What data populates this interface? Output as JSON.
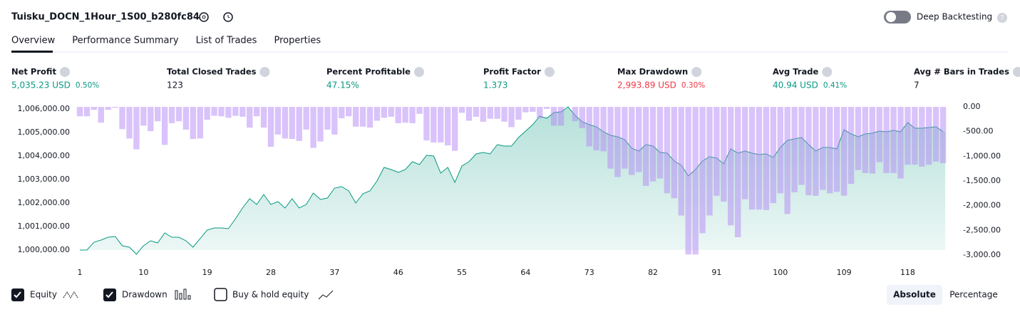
{
  "header": {
    "title": "Tuisku_DOCN_1Hour_1S00_b280fc84",
    "deep_backtesting": "Deep Backtesting"
  },
  "tabs": [
    "Overview",
    "Performance Summary",
    "List of Trades",
    "Properties"
  ],
  "stats": [
    {
      "label": "Net Profit",
      "value": "5,035.23 USD",
      "percent": "0.50%",
      "color": "#089981"
    },
    {
      "label": "Total Closed Trades",
      "value": "123",
      "color": "#131722"
    },
    {
      "label": "Percent Profitable",
      "value": "47.15%",
      "color": "#089981"
    },
    {
      "label": "Profit Factor",
      "value": "1.373",
      "color": "#089981"
    },
    {
      "label": "Max Drawdown",
      "value": "2,993.89 USD",
      "percent": "0.30%",
      "color": "#f23645"
    },
    {
      "label": "Avg Trade",
      "value": "40.94 USD",
      "percent": "0.41%",
      "color": "#089981"
    },
    {
      "label": "Avg # Bars in Trades",
      "value": "7",
      "color": "#131722"
    }
  ],
  "chart_data": {
    "type": "line",
    "x": [
      1,
      2,
      3,
      4,
      5,
      6,
      7,
      8,
      9,
      10,
      11,
      12,
      13,
      14,
      15,
      16,
      17,
      18,
      19,
      20,
      21,
      22,
      23,
      24,
      25,
      26,
      27,
      28,
      29,
      30,
      31,
      32,
      33,
      34,
      35,
      36,
      37,
      38,
      39,
      40,
      41,
      42,
      43,
      44,
      45,
      46,
      47,
      48,
      49,
      50,
      51,
      52,
      53,
      54,
      55,
      56,
      57,
      58,
      59,
      60,
      61,
      62,
      63,
      64,
      65,
      66,
      67,
      68,
      69,
      70,
      71,
      72,
      73,
      74,
      75,
      76,
      77,
      78,
      79,
      80,
      81,
      82,
      83,
      84,
      85,
      86,
      87,
      88,
      89,
      90,
      91,
      92,
      93,
      94,
      95,
      96,
      97,
      98,
      99,
      100,
      101,
      102,
      103,
      104,
      105,
      106,
      107,
      108,
      109,
      110,
      111,
      112,
      113,
      114,
      115,
      116,
      117,
      118,
      119,
      120,
      121,
      122,
      123
    ],
    "series": [
      {
        "name": "Equity",
        "color": "#089981",
        "values": [
          1000000,
          1000000,
          1000333,
          1000424,
          1000545,
          1000576,
          1000182,
          1000121,
          999818,
          1000182,
          1000394,
          1000303,
          1000727,
          1000545,
          1000545,
          1000394,
          1000121,
          1000485,
          1000848,
          1000939,
          1000939,
          1000909,
          1001333,
          1001788,
          1002182,
          1001939,
          1002364,
          1001939,
          1002061,
          1001788,
          1002182,
          1001788,
          1001939,
          1002424,
          1002152,
          1002212,
          1002636,
          1002697,
          1002515,
          1002000,
          1002394,
          1002515,
          1002939,
          1003515,
          1003424,
          1003303,
          1003424,
          1003758,
          1003636,
          1004030,
          1004000,
          1003273,
          1003515,
          1002879,
          1003576,
          1003758,
          1004091,
          1004152,
          1004091,
          1004485,
          1004424,
          1004424,
          1004788,
          1005061,
          1005333,
          1005697,
          1005606,
          1005848,
          1005879,
          1006091,
          1005727,
          1005455,
          1005333,
          1005242,
          1005030,
          1004879,
          1004818,
          1004697,
          1004333,
          1004212,
          1004485,
          1004424,
          1004152,
          1004121,
          1003788,
          1003606,
          1003152,
          1003424,
          1003788,
          1003970,
          1003909,
          1003667,
          1004303,
          1004121,
          1004212,
          1004121,
          1004061,
          1004091,
          1003939,
          1004364,
          1004667,
          1004727,
          1004788,
          1004485,
          1004212,
          1004364,
          1004364,
          1004303,
          1005121,
          1004939,
          1004818,
          1004939,
          1004970,
          1005061,
          1005030,
          1005091,
          1005030,
          1005424,
          1005182,
          1005182,
          1005212,
          1005242,
          1005035.23
        ]
      },
      {
        "name": "Drawdown",
        "color": "#b388f5",
        "axis": "y2",
        "values": [
          -190,
          -190,
          -60,
          -320,
          -60,
          -20,
          -450,
          -640,
          -860,
          -380,
          -490,
          -290,
          -770,
          -330,
          -290,
          -460,
          -650,
          -640,
          -260,
          -180,
          -190,
          -220,
          -180,
          -200,
          -420,
          -190,
          -420,
          -810,
          -560,
          -640,
          -650,
          -690,
          -460,
          -830,
          -700,
          -460,
          -560,
          -230,
          -190,
          -400,
          -400,
          -420,
          -280,
          -220,
          -200,
          -330,
          -320,
          -330,
          -140,
          -680,
          -720,
          -720,
          -780,
          -890,
          -120,
          -280,
          -200,
          -300,
          -240,
          -240,
          -300,
          -410,
          -260,
          -110,
          -100,
          -230,
          -40,
          -380,
          -380,
          0,
          -290,
          -430,
          -800,
          -880,
          -900,
          -1250,
          -1420,
          -1250,
          -1380,
          -1320,
          -1600,
          -1510,
          -1450,
          -1750,
          -1850,
          -2200,
          -2990,
          -2990,
          -2560,
          -2200,
          -1800,
          -1920,
          -2400,
          -2640,
          -1870,
          -2080,
          -2080,
          -2090,
          -1950,
          -1750,
          -2170,
          -1730,
          -1580,
          -1790,
          -1800,
          -1680,
          -1750,
          -1720,
          -1800,
          -1560,
          -1280,
          -1340,
          -1350,
          -1120,
          -1340,
          -1340,
          -1450,
          -1170,
          -1170,
          -1210,
          -1170,
          -1110,
          -1140
        ]
      }
    ],
    "xlim": [
      1,
      124
    ],
    "xticks": [
      1,
      10,
      19,
      28,
      37,
      46,
      55,
      64,
      73,
      82,
      91,
      100,
      109,
      118
    ],
    "ylim": [
      999727,
      1006152
    ],
    "yticks": [
      {
        "value": 1000000,
        "label": "1,000,000.00"
      },
      {
        "value": 1001000,
        "label": "1,001,000.00"
      },
      {
        "value": 1002000,
        "label": "1,002,000.00"
      },
      {
        "value": 1003000,
        "label": "1,003,000.00"
      },
      {
        "value": 1004000,
        "label": "1,004,000.00"
      },
      {
        "value": 1005000,
        "label": "1,005,000.00"
      },
      {
        "value": 1006000,
        "label": "1,006,000.00"
      }
    ],
    "y2lim": [
      -3030,
      30
    ],
    "y2ticks": [
      {
        "value": 0,
        "label": "0.00"
      },
      {
        "value": -500,
        "label": "-500.00"
      },
      {
        "value": -1000,
        "label": "-1,000.00"
      },
      {
        "value": -1500,
        "label": "-1,500.00"
      },
      {
        "value": -2000,
        "label": "-2,000.00"
      },
      {
        "value": -2500,
        "label": "-2,500.00"
      },
      {
        "value": -3000,
        "label": "-3,000.00"
      }
    ]
  },
  "controls": {
    "buy_hold": "Buy & hold equity",
    "modes": [
      "Absolute",
      "Percentage"
    ]
  }
}
